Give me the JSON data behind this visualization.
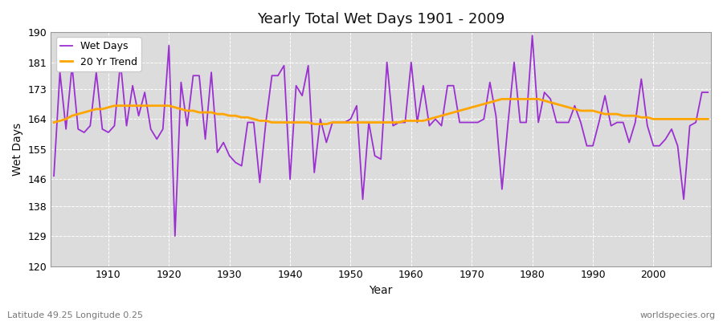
{
  "title": "Yearly Total Wet Days 1901 - 2009",
  "xlabel": "Year",
  "ylabel": "Wet Days",
  "lat_lon_label": "Latitude 49.25 Longitude 0.25",
  "watermark": "worldspecies.org",
  "ylim": [
    120,
    190
  ],
  "yticks": [
    120,
    129,
    138,
    146,
    155,
    164,
    173,
    181,
    190
  ],
  "wet_days_color": "#9b30d0",
  "trend_color": "#ffa500",
  "plot_bg_color": "#dcdcdc",
  "fig_bg_color": "#ffffff",
  "years": [
    1901,
    1902,
    1903,
    1904,
    1905,
    1906,
    1907,
    1908,
    1909,
    1910,
    1911,
    1912,
    1913,
    1914,
    1915,
    1916,
    1917,
    1918,
    1919,
    1920,
    1921,
    1922,
    1923,
    1924,
    1925,
    1926,
    1927,
    1928,
    1929,
    1930,
    1931,
    1932,
    1933,
    1934,
    1935,
    1936,
    1937,
    1938,
    1939,
    1940,
    1941,
    1942,
    1943,
    1944,
    1945,
    1946,
    1947,
    1948,
    1949,
    1950,
    1951,
    1952,
    1953,
    1954,
    1955,
    1956,
    1957,
    1958,
    1959,
    1960,
    1961,
    1962,
    1963,
    1964,
    1965,
    1966,
    1967,
    1968,
    1969,
    1970,
    1971,
    1972,
    1973,
    1974,
    1975,
    1976,
    1977,
    1978,
    1979,
    1980,
    1981,
    1982,
    1983,
    1984,
    1985,
    1986,
    1987,
    1988,
    1989,
    1990,
    1991,
    1992,
    1993,
    1994,
    1995,
    1996,
    1997,
    1998,
    1999,
    2000,
    2001,
    2002,
    2003,
    2004,
    2005,
    2006,
    2007,
    2008,
    2009
  ],
  "wet_days": [
    147,
    178,
    161,
    180,
    161,
    160,
    162,
    178,
    161,
    160,
    162,
    181,
    162,
    174,
    165,
    172,
    161,
    158,
    161,
    186,
    129,
    175,
    162,
    177,
    177,
    158,
    178,
    154,
    157,
    153,
    151,
    150,
    163,
    163,
    145,
    163,
    177,
    177,
    180,
    146,
    174,
    171,
    180,
    148,
    164,
    157,
    163,
    163,
    163,
    164,
    168,
    140,
    163,
    153,
    152,
    181,
    162,
    163,
    163,
    181,
    163,
    174,
    162,
    164,
    162,
    174,
    174,
    163,
    163,
    163,
    163,
    164,
    175,
    165,
    143,
    163,
    181,
    163,
    163,
    189,
    163,
    172,
    170,
    163,
    163,
    163,
    168,
    163,
    156,
    156,
    163,
    171,
    162,
    163,
    163,
    157,
    163,
    176,
    162,
    156,
    156,
    158,
    161,
    156,
    140,
    162,
    163,
    172,
    172
  ],
  "trend": [
    163.0,
    163.5,
    164.0,
    165.0,
    165.5,
    166.0,
    166.5,
    167.0,
    167.0,
    167.5,
    168.0,
    168.0,
    168.0,
    168.0,
    168.0,
    168.0,
    168.0,
    168.0,
    168.0,
    168.0,
    167.5,
    167.0,
    166.5,
    166.5,
    166.0,
    166.0,
    166.0,
    165.5,
    165.5,
    165.0,
    165.0,
    164.5,
    164.5,
    164.0,
    163.5,
    163.5,
    163.0,
    163.0,
    163.0,
    163.0,
    163.0,
    163.0,
    163.0,
    162.5,
    162.5,
    162.5,
    163.0,
    163.0,
    163.0,
    163.0,
    163.0,
    163.0,
    163.0,
    163.0,
    163.0,
    163.0,
    163.0,
    163.0,
    163.5,
    163.5,
    163.5,
    163.5,
    164.0,
    164.5,
    165.0,
    165.5,
    166.0,
    166.5,
    167.0,
    167.5,
    168.0,
    168.5,
    169.0,
    169.5,
    170.0,
    170.0,
    170.0,
    170.0,
    170.0,
    170.0,
    170.0,
    169.5,
    169.0,
    168.5,
    168.0,
    167.5,
    167.0,
    166.5,
    166.5,
    166.5,
    166.0,
    165.5,
    165.5,
    165.5,
    165.0,
    165.0,
    165.0,
    164.5,
    164.5,
    164.0,
    164.0,
    164.0,
    164.0,
    164.0,
    164.0,
    164.0,
    164.0,
    164.0,
    164.0
  ]
}
